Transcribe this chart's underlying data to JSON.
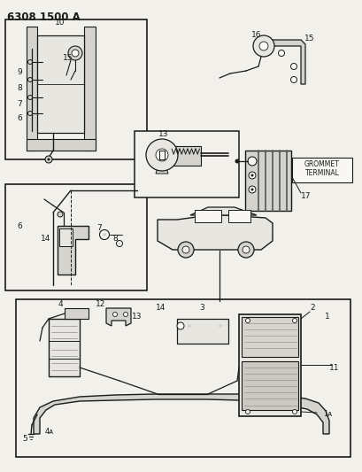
{
  "title": "6308 1500 A",
  "bg_color": "#f2f0eb",
  "line_color": "#1a1a1a",
  "fill_light": "#e8e6e0",
  "fill_mid": "#d5d3ce",
  "white": "#f8f7f4",
  "grommet_text": [
    "GROMMET",
    "TERMINAL"
  ],
  "fig_w": 4.1,
  "fig_h": 5.33,
  "dpi": 100
}
